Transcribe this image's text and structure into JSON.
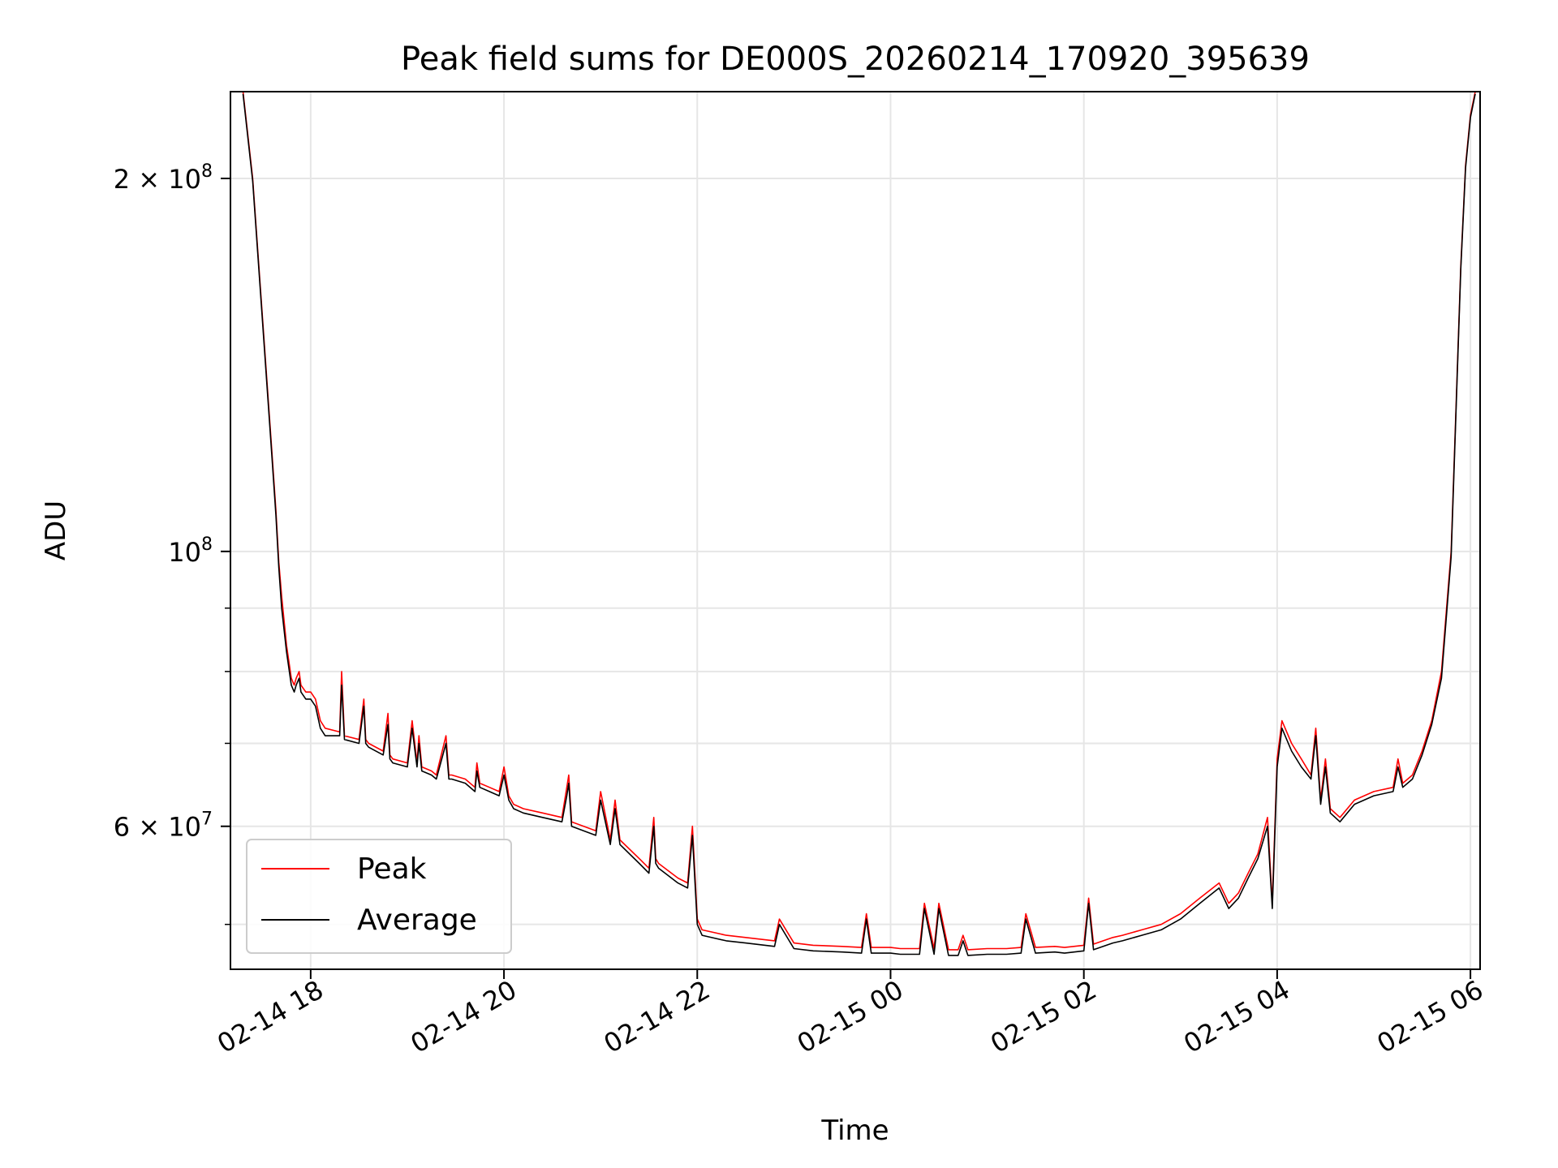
{
  "chart_data": {
    "type": "line",
    "title": "Peak field sums for DE000S_20260214_170920_395639",
    "xlabel": "Time",
    "ylabel": "ADU",
    "yscale": "log",
    "ylim": [
      46000000,
      235000000
    ],
    "xlim_hours": [
      -0.83,
      12.1
    ],
    "x_unit": "hours since 02-14 18:00",
    "grid": true,
    "legend_position": "lower-left",
    "x_ticks": [
      {
        "label": "02-14 18",
        "value": 0
      },
      {
        "label": "02-14 20",
        "value": 2
      },
      {
        "label": "02-14 22",
        "value": 4
      },
      {
        "label": "02-15 00",
        "value": 6
      },
      {
        "label": "02-15 02",
        "value": 8
      },
      {
        "label": "02-15 04",
        "value": 10
      },
      {
        "label": "02-15 06",
        "value": 12
      }
    ],
    "y_ticks": [
      {
        "label_base": "2 × 10",
        "label_exp": "8",
        "value": 200000000
      },
      {
        "label_base": "10",
        "label_exp": "8",
        "value": 100000000
      },
      {
        "label_base": "6 × 10",
        "label_exp": "7",
        "value": 60000000
      }
    ],
    "y_minor_grid": [
      50000000,
      70000000,
      80000000,
      90000000
    ],
    "series": [
      {
        "name": "Peak",
        "color": "#ff0000",
        "x": [
          -0.7,
          -0.6,
          -0.5,
          -0.4,
          -0.36,
          -0.33,
          -0.3,
          -0.25,
          -0.2,
          -0.17,
          -0.15,
          -0.12,
          -0.1,
          -0.05,
          0.0,
          0.05,
          0.1,
          0.15,
          0.3,
          0.32,
          0.35,
          0.5,
          0.55,
          0.57,
          0.6,
          0.75,
          0.8,
          0.82,
          0.85,
          1.0,
          1.05,
          1.1,
          1.12,
          1.15,
          1.25,
          1.3,
          1.4,
          1.43,
          1.46,
          1.6,
          1.7,
          1.72,
          1.75,
          1.85,
          1.95,
          2.0,
          2.05,
          2.1,
          2.2,
          2.4,
          2.6,
          2.65,
          2.67,
          2.7,
          2.95,
          3.0,
          3.1,
          3.15,
          3.2,
          3.4,
          3.5,
          3.55,
          3.57,
          3.6,
          3.8,
          3.9,
          3.95,
          4.0,
          4.05,
          4.3,
          4.5,
          4.8,
          4.85,
          5.0,
          5.2,
          5.5,
          5.7,
          5.75,
          5.8,
          6.0,
          6.1,
          6.3,
          6.35,
          6.45,
          6.5,
          6.6,
          6.7,
          6.75,
          6.8,
          7.0,
          7.2,
          7.35,
          7.4,
          7.5,
          7.7,
          7.8,
          8.0,
          8.05,
          8.1,
          8.2,
          8.3,
          8.4,
          8.6,
          8.8,
          9.0,
          9.2,
          9.4,
          9.5,
          9.6,
          9.7,
          9.8,
          9.9,
          9.95,
          10.0,
          10.05,
          10.15,
          10.25,
          10.35,
          10.4,
          10.45,
          10.5,
          10.55,
          10.65,
          10.8,
          11.0,
          11.2,
          11.25,
          11.3,
          11.4,
          11.5,
          11.6,
          11.7,
          11.8,
          11.85,
          11.9,
          11.95,
          12.0,
          12.05
        ],
        "y": [
          235000000,
          200000000,
          155000000,
          120000000,
          108000000,
          98000000,
          92000000,
          84000000,
          79000000,
          78000000,
          79000000,
          80000000,
          78000000,
          77000000,
          77000000,
          76000000,
          73000000,
          72000000,
          71500000,
          80000000,
          71000000,
          70500000,
          76000000,
          70500000,
          70000000,
          69000000,
          74000000,
          68500000,
          68000000,
          67500000,
          73000000,
          67500000,
          71000000,
          67000000,
          66500000,
          66000000,
          71000000,
          66000000,
          66000000,
          65500000,
          64500000,
          67500000,
          65000000,
          64500000,
          64000000,
          67000000,
          63500000,
          62500000,
          62000000,
          61500000,
          61000000,
          64500000,
          66000000,
          60500000,
          59500000,
          64000000,
          58500000,
          63000000,
          58500000,
          56500000,
          55500000,
          61000000,
          56500000,
          56000000,
          54500000,
          54000000,
          60000000,
          50500000,
          49500000,
          49000000,
          48800000,
          48500000,
          50500000,
          48300000,
          48100000,
          48000000,
          47900000,
          51000000,
          47900000,
          47900000,
          47800000,
          47800000,
          52000000,
          47800000,
          52000000,
          47700000,
          47700000,
          49000000,
          47700000,
          47800000,
          47800000,
          47900000,
          51000000,
          47900000,
          48000000,
          47900000,
          48100000,
          52500000,
          48200000,
          48500000,
          48800000,
          49000000,
          49500000,
          50000000,
          51000000,
          52500000,
          54000000,
          52000000,
          53000000,
          55000000,
          57000000,
          61000000,
          52000000,
          68000000,
          73000000,
          70000000,
          68000000,
          66000000,
          72000000,
          63000000,
          68000000,
          62000000,
          61000000,
          63000000,
          64000000,
          64500000,
          68000000,
          65000000,
          66000000,
          69000000,
          73000000,
          80000000,
          100000000,
          130000000,
          170000000,
          205000000,
          225000000,
          235000000
        ]
      },
      {
        "name": "Average",
        "color": "#000000",
        "x": [
          -0.7,
          -0.6,
          -0.5,
          -0.4,
          -0.36,
          -0.33,
          -0.3,
          -0.25,
          -0.2,
          -0.17,
          -0.15,
          -0.12,
          -0.1,
          -0.05,
          0.0,
          0.05,
          0.1,
          0.15,
          0.3,
          0.32,
          0.35,
          0.5,
          0.55,
          0.57,
          0.6,
          0.75,
          0.8,
          0.82,
          0.85,
          1.0,
          1.05,
          1.1,
          1.12,
          1.15,
          1.25,
          1.3,
          1.4,
          1.43,
          1.46,
          1.6,
          1.7,
          1.72,
          1.75,
          1.85,
          1.95,
          2.0,
          2.05,
          2.1,
          2.2,
          2.4,
          2.6,
          2.65,
          2.67,
          2.7,
          2.95,
          3.0,
          3.1,
          3.15,
          3.2,
          3.4,
          3.5,
          3.55,
          3.57,
          3.6,
          3.8,
          3.9,
          3.95,
          4.0,
          4.05,
          4.3,
          4.5,
          4.8,
          4.85,
          5.0,
          5.2,
          5.5,
          5.7,
          5.75,
          5.8,
          6.0,
          6.1,
          6.3,
          6.35,
          6.45,
          6.5,
          6.6,
          6.7,
          6.75,
          6.8,
          7.0,
          7.2,
          7.35,
          7.4,
          7.5,
          7.7,
          7.8,
          8.0,
          8.05,
          8.1,
          8.2,
          8.3,
          8.4,
          8.6,
          8.8,
          9.0,
          9.2,
          9.4,
          9.5,
          9.6,
          9.7,
          9.8,
          9.9,
          9.95,
          10.0,
          10.05,
          10.15,
          10.25,
          10.35,
          10.4,
          10.45,
          10.5,
          10.55,
          10.65,
          10.8,
          11.0,
          11.2,
          11.25,
          11.3,
          11.4,
          11.5,
          11.6,
          11.7,
          11.8,
          11.85,
          11.9,
          11.95,
          12.0,
          12.05
        ],
        "y": [
          234000000,
          199000000,
          154000000,
          119000000,
          107000000,
          97000000,
          90000000,
          83000000,
          78000000,
          77000000,
          78000000,
          79000000,
          77000000,
          76000000,
          76000000,
          75000000,
          72000000,
          71000000,
          71000000,
          78000000,
          70500000,
          70000000,
          75000000,
          70000000,
          69500000,
          68500000,
          72500000,
          68000000,
          67500000,
          67000000,
          72000000,
          67000000,
          70000000,
          66500000,
          66000000,
          65500000,
          70000000,
          65500000,
          65500000,
          65000000,
          64000000,
          66500000,
          64500000,
          64000000,
          63500000,
          66000000,
          63000000,
          62000000,
          61500000,
          61000000,
          60500000,
          63500000,
          65000000,
          60000000,
          59000000,
          63000000,
          58000000,
          62000000,
          58000000,
          56000000,
          55000000,
          60000000,
          56000000,
          55500000,
          54000000,
          53500000,
          59000000,
          50000000,
          49000000,
          48500000,
          48300000,
          48000000,
          50000000,
          47800000,
          47600000,
          47500000,
          47400000,
          50500000,
          47400000,
          47400000,
          47300000,
          47300000,
          51500000,
          47300000,
          51500000,
          47200000,
          47200000,
          48500000,
          47200000,
          47300000,
          47300000,
          47400000,
          50500000,
          47400000,
          47500000,
          47400000,
          47600000,
          52000000,
          47700000,
          48000000,
          48300000,
          48500000,
          49000000,
          49500000,
          50500000,
          52000000,
          53500000,
          51500000,
          52500000,
          54500000,
          56500000,
          60000000,
          51500000,
          67000000,
          72000000,
          69000000,
          67000000,
          65500000,
          71000000,
          62500000,
          67000000,
          61500000,
          60500000,
          62500000,
          63500000,
          64000000,
          67000000,
          64500000,
          65500000,
          68500000,
          72500000,
          79000000,
          99000000,
          129000000,
          169000000,
          204000000,
          224000000,
          234000000
        ]
      }
    ]
  }
}
